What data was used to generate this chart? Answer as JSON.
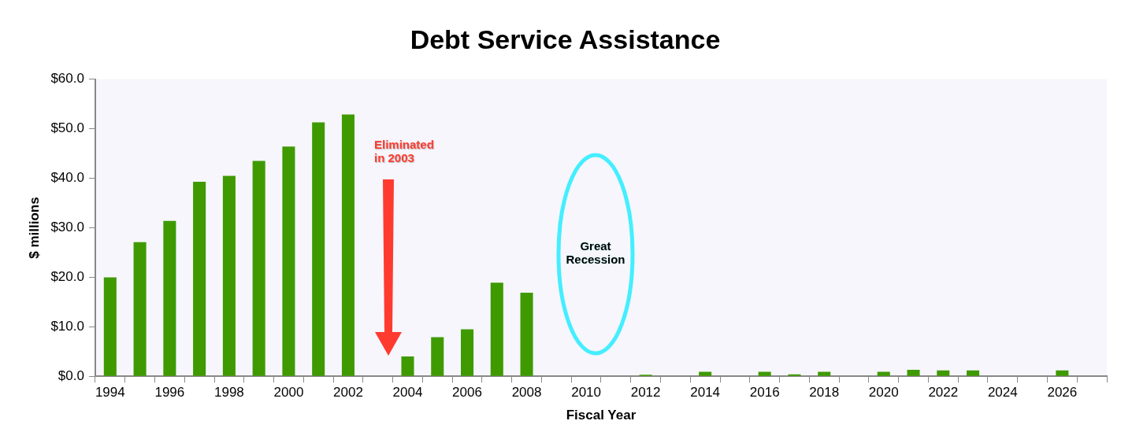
{
  "chart_data": {
    "type": "bar",
    "title": "Debt Service Assistance",
    "xlabel": "Fiscal Year",
    "ylabel": "$ millions",
    "categories": [
      "1994",
      null,
      "1996",
      null,
      "1998",
      null,
      "2000",
      null,
      "2002",
      null,
      "2004",
      null,
      "2006",
      null,
      "2008",
      null,
      "2010",
      null,
      "2012",
      null,
      "2014",
      null,
      "2016",
      null,
      "2018",
      null,
      "2020",
      null,
      "2022",
      null,
      "2024",
      null,
      "2026",
      null
    ],
    "values": [
      20.0,
      27.1,
      31.4,
      39.3,
      40.5,
      43.5,
      46.4,
      51.3,
      52.9,
      0,
      4.0,
      7.9,
      9.5,
      18.9,
      16.9,
      0,
      0,
      0,
      0.3,
      0,
      0.9,
      0,
      0.9,
      0.4,
      0.9,
      0,
      0.9,
      1.3,
      1.2,
      1.2,
      0,
      0,
      1.2,
      0
    ],
    "color": "#3f9a00",
    "ylim": [
      0,
      60
    ],
    "yticks": [
      {
        "value": 0,
        "label": "$0.0"
      },
      {
        "value": 10,
        "label": "$10.0"
      },
      {
        "value": 20,
        "label": "$20.0"
      },
      {
        "value": 30,
        "label": "$30.0"
      },
      {
        "value": 40,
        "label": "$40.0"
      },
      {
        "value": 50,
        "label": "$50.0"
      },
      {
        "value": 60,
        "label": "$60.0"
      }
    ],
    "grid": false,
    "annotations": [
      "Eliminated in 2003",
      "Great Recession"
    ]
  }
}
